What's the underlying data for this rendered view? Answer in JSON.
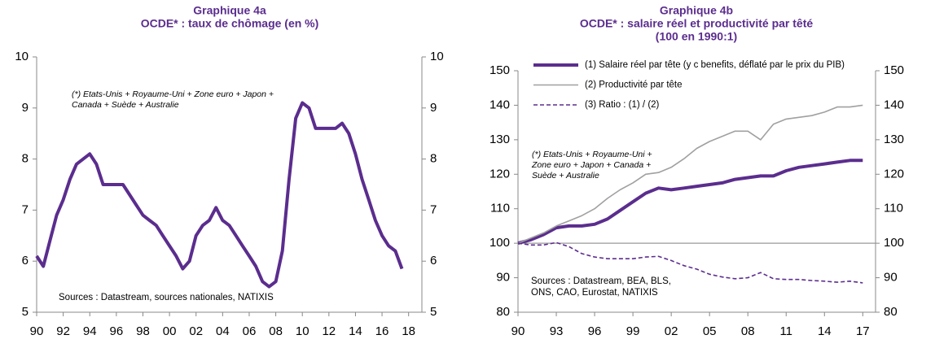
{
  "chart_data": [
    {
      "type": "line",
      "title": [
        "Graphique 4a",
        "OCDE* : taux de chômage (en %)"
      ],
      "annotation": [
        "(*) Etats-Unis + Royaume-Uni + Zone euro + Japon +",
        "Canada + Suède + Australie"
      ],
      "source": [
        "Sources : Datastream, sources nationales, NATIXIS"
      ],
      "x": [
        1990.0,
        1990.5,
        1991.0,
        1991.5,
        1992.0,
        1992.5,
        1993.0,
        1993.5,
        1994.0,
        1994.5,
        1995.0,
        1995.5,
        1996.0,
        1996.5,
        1997.0,
        1997.5,
        1998.0,
        1998.5,
        1999.0,
        1999.5,
        2000.0,
        2000.5,
        2001.0,
        2001.5,
        2002.0,
        2002.5,
        2003.0,
        2003.5,
        2004.0,
        2004.5,
        2005.0,
        2005.5,
        2006.0,
        2006.5,
        2007.0,
        2007.5,
        2008.0,
        2008.5,
        2009.0,
        2009.5,
        2010.0,
        2010.5,
        2011.0,
        2011.5,
        2012.0,
        2012.5,
        2013.0,
        2013.5,
        2014.0,
        2014.5,
        2015.0,
        2015.5,
        2016.0,
        2016.5,
        2017.0,
        2017.5
      ],
      "series": [
        {
          "color": "#5b2d8e",
          "line_style": "thick",
          "values": [
            6.1,
            5.9,
            6.4,
            6.9,
            7.2,
            7.6,
            7.9,
            8.0,
            8.1,
            7.9,
            7.5,
            7.5,
            7.5,
            7.5,
            7.3,
            7.1,
            6.9,
            6.8,
            6.7,
            6.5,
            6.3,
            6.1,
            5.85,
            6.0,
            6.5,
            6.7,
            6.8,
            7.05,
            6.8,
            6.7,
            6.5,
            6.3,
            6.1,
            5.9,
            5.6,
            5.5,
            5.6,
            6.2,
            7.6,
            8.8,
            9.1,
            9.0,
            8.6,
            8.6,
            8.6,
            8.6,
            8.7,
            8.5,
            8.1,
            7.6,
            7.2,
            6.8,
            6.5,
            6.3,
            6.2,
            5.85
          ]
        }
      ],
      "xlim": [
        1990,
        2019
      ],
      "xticks": [
        {
          "value": 1990,
          "label": "90"
        },
        {
          "value": 1992,
          "label": "92"
        },
        {
          "value": 1994,
          "label": "94"
        },
        {
          "value": 1996,
          "label": "96"
        },
        {
          "value": 1998,
          "label": "98"
        },
        {
          "value": 2000,
          "label": "00"
        },
        {
          "value": 2002,
          "label": "02"
        },
        {
          "value": 2004,
          "label": "04"
        },
        {
          "value": 2006,
          "label": "06"
        },
        {
          "value": 2008,
          "label": "08"
        },
        {
          "value": 2010,
          "label": "10"
        },
        {
          "value": 2012,
          "label": "12"
        },
        {
          "value": 2014,
          "label": "14"
        },
        {
          "value": 2016,
          "label": "16"
        },
        {
          "value": 2018,
          "label": "18"
        }
      ],
      "ylim": [
        5,
        10
      ],
      "yticks": [
        5,
        6,
        7,
        8,
        9,
        10
      ],
      "y2lim": [
        5,
        10
      ],
      "y2ticks": [
        5,
        6,
        7,
        8,
        9,
        10
      ]
    },
    {
      "type": "line",
      "title": [
        "Graphique 4b",
        "OCDE* : salaire réel et productivité par têté",
        "(100 en 1990:1)"
      ],
      "annotation": [
        "(*) Etats-Unis + Royaume-Uni +",
        "Zone euro + Japon + Canada +",
        "Suède + Australie"
      ],
      "source": [
        "Sources : Datastream, BEA, BLS,",
        "ONS, CAO, Eurostat, NATIXIS"
      ],
      "x": [
        1990,
        1991,
        1992,
        1993,
        1994,
        1995,
        1996,
        1997,
        1998,
        1999,
        2000,
        2001,
        2002,
        2003,
        2004,
        2005,
        2006,
        2007,
        2008,
        2009,
        2010,
        2011,
        2012,
        2013,
        2014,
        2015,
        2016,
        2017
      ],
      "series": [
        {
          "name": "(1) Salaire réel par tête (y c benefits, déflaté par le prix du PIB)",
          "color": "#5b2d8e",
          "line_style": "thick",
          "values": [
            100,
            101,
            102.5,
            104.5,
            105,
            105,
            105.5,
            107,
            109.5,
            112,
            114.5,
            116,
            115.5,
            116,
            116.5,
            117,
            117.5,
            118.5,
            119,
            119.5,
            119.5,
            121,
            122,
            122.5,
            123,
            123.5,
            124,
            124
          ]
        },
        {
          "name": "(2) Productivité par tête",
          "color": "#a0a0a0",
          "line_style": "solid",
          "values": [
            100,
            101.5,
            103,
            105,
            106.5,
            108,
            110,
            113,
            115.5,
            117.5,
            120,
            120.5,
            122,
            124.5,
            127.5,
            129.5,
            131,
            132.5,
            132.5,
            130,
            134.5,
            136,
            136.5,
            137,
            138,
            139.5,
            139.5,
            140
          ]
        },
        {
          "name": "(3) Ratio : (1) / (2)",
          "color": "#5b2d8e",
          "line_style": "dashed",
          "values": [
            100,
            99.5,
            99.5,
            100.2,
            99,
            97,
            96,
            95.5,
            95.5,
            95.5,
            96,
            96.2,
            95,
            93.5,
            92.5,
            91,
            90.2,
            89.7,
            90,
            91.5,
            89.7,
            89.5,
            89.5,
            89.2,
            89,
            88.7,
            89,
            88.5
          ]
        }
      ],
      "reference_line": 100,
      "xlim": [
        1990,
        2018
      ],
      "xticks": [
        {
          "value": 1990,
          "label": "90"
        },
        {
          "value": 1993,
          "label": "93"
        },
        {
          "value": 1996,
          "label": "96"
        },
        {
          "value": 1999,
          "label": "99"
        },
        {
          "value": 2002,
          "label": "02"
        },
        {
          "value": 2005,
          "label": "05"
        },
        {
          "value": 2008,
          "label": "08"
        },
        {
          "value": 2011,
          "label": "11"
        },
        {
          "value": 2014,
          "label": "14"
        },
        {
          "value": 2017,
          "label": "17"
        }
      ],
      "ylim": [
        80,
        150
      ],
      "yticks": [
        80,
        90,
        100,
        110,
        120,
        130,
        140,
        150
      ],
      "y2lim": [
        80,
        150
      ],
      "y2ticks": [
        80,
        90,
        100,
        110,
        120,
        130,
        140,
        150
      ],
      "legend": "top-left"
    }
  ]
}
